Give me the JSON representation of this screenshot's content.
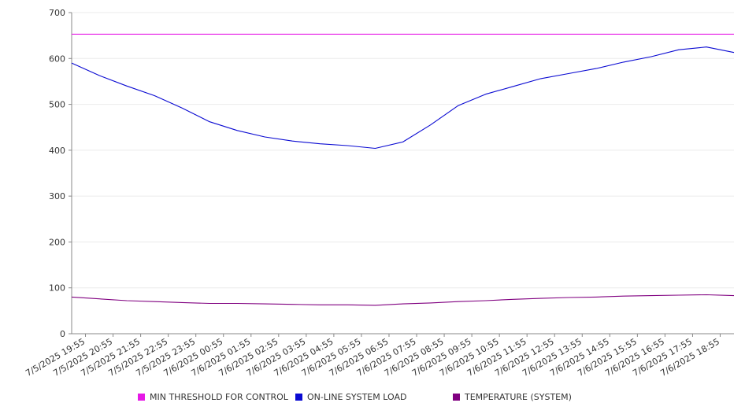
{
  "chart_data": {
    "type": "line",
    "title": "",
    "xlabel": "",
    "ylabel": "",
    "ylim": [
      0,
      700
    ],
    "y_ticks": [
      "0",
      "100",
      "200",
      "300",
      "400",
      "500",
      "600",
      "700"
    ],
    "x_tick_labels": [
      "7/5/2025 19:55",
      "7/5/2025 20:55",
      "7/5/2025 21:55",
      "7/5/2025 22:55",
      "7/5/2025 23:55",
      "7/6/2025 00:55",
      "7/6/2025 01:55",
      "7/6/2025 02:55",
      "7/6/2025 03:55",
      "7/6/2025 04:55",
      "7/6/2025 05:55",
      "7/6/2025 06:55",
      "7/6/2025 07:55",
      "7/6/2025 08:55",
      "7/6/2025 09:55",
      "7/6/2025 10:55",
      "7/6/2025 11:55",
      "7/6/2025 12:55",
      "7/6/2025 13:55",
      "7/6/2025 14:55",
      "7/6/2025 15:55",
      "7/6/2025 16:55",
      "7/6/2025 17:55",
      "7/6/2025 18:55"
    ],
    "grid": "horizontal",
    "legend_position": "bottom",
    "series": [
      {
        "name": "MIN THRESHOLD FOR CONTROL",
        "color": "#e619e6",
        "values": [
          653,
          653,
          653,
          653,
          653,
          653,
          653,
          653,
          653,
          653,
          653,
          653,
          653,
          653,
          653,
          653,
          653,
          653,
          653,
          653,
          653,
          653,
          653,
          653,
          653
        ]
      },
      {
        "name": "ON-LINE SYSTEM LOAD",
        "color": "#0a0ad2",
        "values": [
          590,
          563,
          540,
          519,
          492,
          462,
          443,
          429,
          420,
          414,
          410,
          404,
          418,
          455,
          497,
          522,
          539,
          556,
          567,
          578,
          592,
          604,
          619,
          625,
          613
        ]
      },
      {
        "name": "TEMPERATURE (SYSTEM)",
        "color": "#800080",
        "values": [
          80,
          76,
          72,
          70,
          68,
          66,
          66,
          65,
          64,
          63,
          63,
          62,
          65,
          67,
          70,
          72,
          75,
          77,
          79,
          80,
          82,
          83,
          84,
          85,
          83
        ]
      }
    ]
  }
}
